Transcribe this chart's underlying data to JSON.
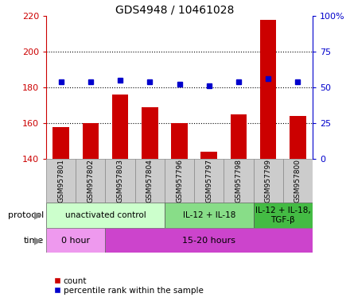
{
  "title": "GDS4948 / 10461028",
  "samples": [
    "GSM957801",
    "GSM957802",
    "GSM957803",
    "GSM957804",
    "GSM957796",
    "GSM957797",
    "GSM957798",
    "GSM957799",
    "GSM957800"
  ],
  "count_values": [
    158,
    160,
    176,
    169,
    160,
    144,
    165,
    218,
    164
  ],
  "percentile_values": [
    183,
    183,
    184,
    183,
    182,
    181,
    183,
    185,
    183
  ],
  "count_base": 140,
  "count_ylim": [
    140,
    220
  ],
  "count_yticks": [
    140,
    160,
    180,
    200,
    220
  ],
  "percentile_ylim": [
    0,
    100
  ],
  "percentile_yticks": [
    0,
    25,
    50,
    75,
    100
  ],
  "percentile_ytick_labels": [
    "0",
    "25",
    "50",
    "75",
    "100%"
  ],
  "bar_color": "#cc0000",
  "dot_color": "#0000cc",
  "count_color": "#cc0000",
  "percentile_color": "#0000cc",
  "protocol_groups": [
    {
      "label": "unactivated control",
      "start": 0,
      "end": 4,
      "color": "#ccffcc"
    },
    {
      "label": "IL-12 + IL-18",
      "start": 4,
      "end": 7,
      "color": "#88dd88"
    },
    {
      "label": "IL-12 + IL-18,\nTGF-β",
      "start": 7,
      "end": 9,
      "color": "#44bb44"
    }
  ],
  "time_groups": [
    {
      "label": "0 hour",
      "start": 0,
      "end": 2,
      "color": "#ee99ee"
    },
    {
      "label": "15-20 hours",
      "start": 2,
      "end": 9,
      "color": "#cc44cc"
    }
  ],
  "sample_box_color": "#cccccc",
  "title_fontsize": 10,
  "legend_fontsize": 7.5,
  "protocol_fontsize": 7.5,
  "time_fontsize": 8,
  "label_fontsize": 8,
  "sample_fontsize": 6.5
}
